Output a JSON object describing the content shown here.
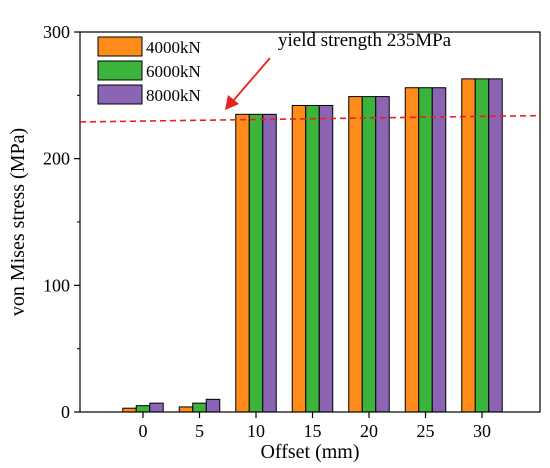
{
  "chart_data": {
    "type": "bar",
    "categories": [
      "0",
      "5",
      "10",
      "15",
      "20",
      "25",
      "30"
    ],
    "series": [
      {
        "name": "4000kN",
        "color": "#ff8c1a",
        "values": [
          3,
          4,
          235,
          242,
          249,
          256,
          263
        ]
      },
      {
        "name": "6000kN",
        "color": "#3cb43c",
        "values": [
          5,
          7,
          235,
          242,
          249,
          256,
          263
        ]
      },
      {
        "name": "8000kN",
        "color": "#8c64b4",
        "values": [
          7,
          10,
          235,
          242,
          249,
          256,
          263
        ]
      }
    ],
    "xlabel": "Offset (mm)",
    "ylabel": "von Mises stress (MPa)",
    "ylim": [
      0,
      300
    ],
    "yticks": [
      0,
      100,
      200,
      300
    ],
    "grid": false,
    "legend": "top-left",
    "annotation": {
      "text": "yield strength 235MPa",
      "line_color": "#e82020",
      "line_y_start": 229,
      "line_y_end": 234
    }
  }
}
